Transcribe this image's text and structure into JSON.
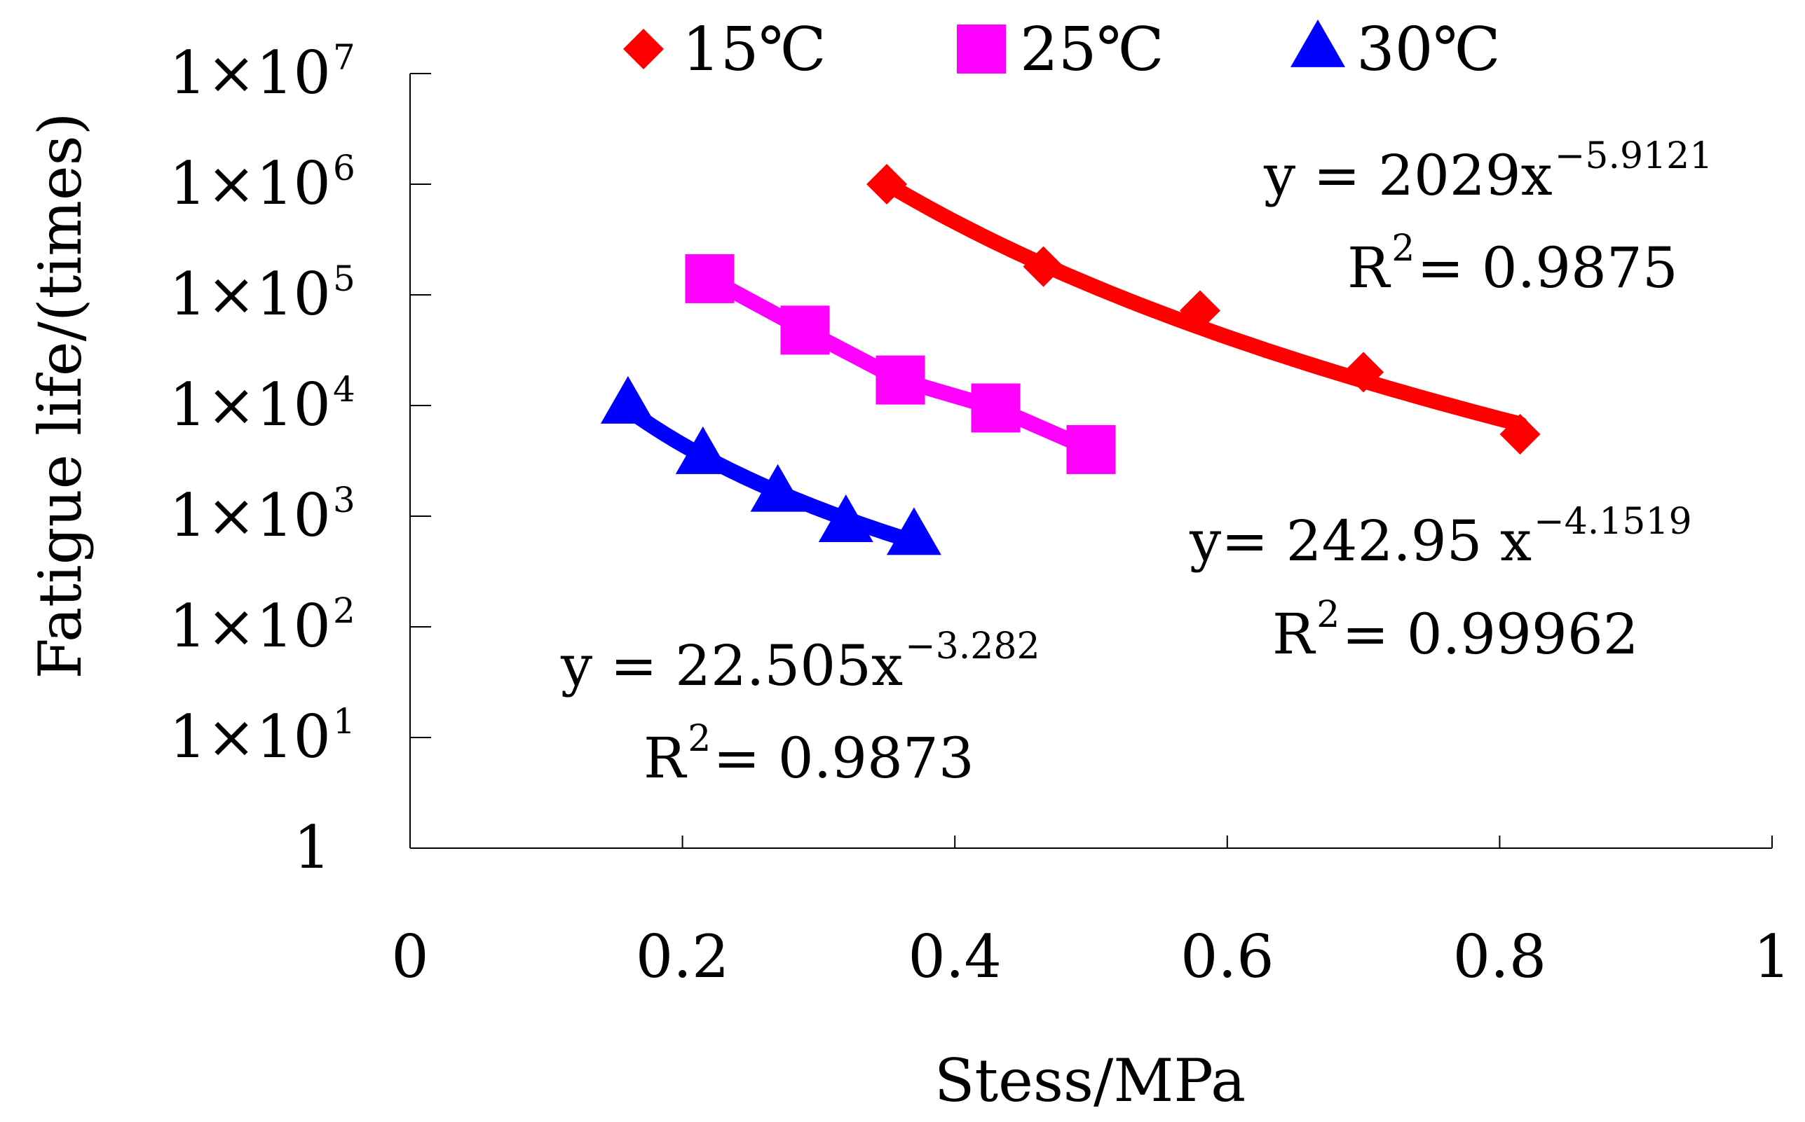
{
  "chart_data": {
    "type": "scatter",
    "title": "",
    "xlabel": "Stess/MPa",
    "ylabel": "Fatigue life/(times)",
    "xlim": [
      0,
      1
    ],
    "ylim": [
      1,
      10000000
    ],
    "yscale": "log",
    "grid": false,
    "legend_position": "top",
    "x_ticks": [
      {
        "value": 0,
        "label": "0"
      },
      {
        "value": 0.2,
        "label": "0.2"
      },
      {
        "value": 0.4,
        "label": "0.4"
      },
      {
        "value": 0.6,
        "label": "0.6"
      },
      {
        "value": 0.8,
        "label": "0.8"
      },
      {
        "value": 1,
        "label": "1"
      }
    ],
    "y_ticks": [
      {
        "value": 1,
        "base": "1",
        "exp": ""
      },
      {
        "value": 10,
        "base": "1×10",
        "exp": "1"
      },
      {
        "value": 100,
        "base": "1×10",
        "exp": "2"
      },
      {
        "value": 1000,
        "base": "1×10",
        "exp": "3"
      },
      {
        "value": 10000,
        "base": "1×10",
        "exp": "4"
      },
      {
        "value": 100000,
        "base": "1×10",
        "exp": "5"
      },
      {
        "value": 1000000,
        "base": "1×10",
        "exp": "6"
      },
      {
        "value": 10000000,
        "base": "1×10",
        "exp": "7"
      }
    ],
    "series": [
      {
        "name": "15℃",
        "color": "#ff0000",
        "marker": "diamond",
        "points": [
          {
            "x": 0.35,
            "y": 1000000
          },
          {
            "x": 0.465,
            "y": 180000
          },
          {
            "x": 0.58,
            "y": 72000
          },
          {
            "x": 0.7,
            "y": 20000
          },
          {
            "x": 0.815,
            "y": 5500
          }
        ],
        "trendline": {
          "a": 2029,
          "b": -5.9121,
          "x_range": [
            0.35,
            0.815
          ]
        },
        "equation": {
          "prefix": "y = 2029x",
          "exp": "−5.9121"
        },
        "r2": {
          "prefix": "R",
          "sup": "2",
          "value": " = 0.9875"
        }
      },
      {
        "name": "25℃",
        "color": "#ff00ff",
        "marker": "square",
        "points": [
          {
            "x": 0.22,
            "y": 140000
          },
          {
            "x": 0.29,
            "y": 48000
          },
          {
            "x": 0.36,
            "y": 17000
          },
          {
            "x": 0.43,
            "y": 9500
          },
          {
            "x": 0.5,
            "y": 4000
          }
        ],
        "trendline": null,
        "equation": {
          "prefix": "y= 242.95 x",
          "exp": "−4.1519"
        },
        "r2": {
          "prefix": "R",
          "sup": "2",
          "value": " = 0.99962"
        }
      },
      {
        "name": "30℃",
        "color": "#0000ff",
        "marker": "triangle",
        "points": [
          {
            "x": 0.16,
            "y": 10000
          },
          {
            "x": 0.215,
            "y": 3500
          },
          {
            "x": 0.27,
            "y": 1600
          },
          {
            "x": 0.32,
            "y": 850
          },
          {
            "x": 0.37,
            "y": 650
          }
        ],
        "trendline": {
          "a": 22.505,
          "b": -3.282,
          "x_range": [
            0.16,
            0.37
          ]
        },
        "equation": {
          "prefix": "y = 22.505x",
          "exp": "−3.282"
        },
        "r2": {
          "prefix": "R",
          "sup": "2",
          "value": " = 0.9873"
        }
      }
    ]
  }
}
